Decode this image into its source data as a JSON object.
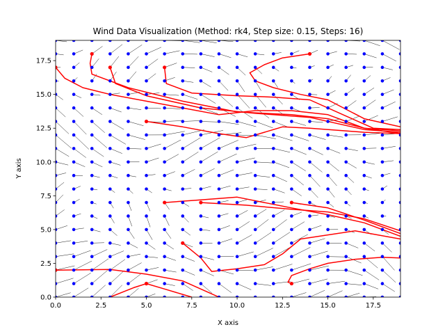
{
  "chart_data": {
    "type": "quiver+streamlines",
    "title": "Wind Data Visualization (Method: rk4, Step size: 0.15, Steps: 16)",
    "xlabel": "X axis",
    "ylabel": "Y axis",
    "xlim": [
      0,
      19
    ],
    "ylim": [
      0,
      19
    ],
    "xticks": [
      "0.0",
      "2.5",
      "5.0",
      "7.5",
      "10.0",
      "12.5",
      "15.0",
      "17.5"
    ],
    "xtick_values": [
      0,
      2.5,
      5,
      7.5,
      10,
      12.5,
      15,
      17.5
    ],
    "yticks": [
      "0.0",
      "2.5",
      "5.0",
      "7.5",
      "10.0",
      "12.5",
      "15.0",
      "17.5"
    ],
    "ytick_values": [
      0,
      2.5,
      5,
      7.5,
      10,
      12.5,
      15,
      17.5
    ],
    "grid": false,
    "colors": {
      "grid_points": "#0000ff",
      "streamlines": "#ff0000",
      "arrows": "#000000"
    },
    "grid_points": {
      "x_range": [
        0,
        19
      ],
      "y_range": [
        0,
        19
      ],
      "step": 1
    },
    "streamlines": [
      {
        "start": [
          2,
          18
        ],
        "points": [
          [
            2,
            18
          ],
          [
            1.9,
            17.3
          ],
          [
            2,
            16.5
          ],
          [
            4,
            15.5
          ],
          [
            7,
            14.5
          ],
          [
            10,
            13.7
          ],
          [
            13,
            13.5
          ],
          [
            15,
            13.2
          ],
          [
            17,
            12.5
          ],
          [
            19,
            12.3
          ]
        ]
      },
      {
        "start": [
          3,
          17
        ],
        "points": [
          [
            3,
            17
          ],
          [
            3.3,
            15.8
          ],
          [
            5,
            14.9
          ],
          [
            8,
            14
          ],
          [
            11,
            13.6
          ],
          [
            14,
            13.3
          ],
          [
            17,
            12.4
          ],
          [
            19,
            12.2
          ]
        ]
      },
      {
        "start": [
          6,
          17
        ],
        "points": [
          [
            6,
            17
          ],
          [
            6.1,
            15.8
          ],
          [
            7.5,
            15.1
          ],
          [
            10,
            14.9
          ],
          [
            12,
            14.8
          ],
          [
            14,
            14.6
          ],
          [
            16,
            13.4
          ],
          [
            17.5,
            12.5
          ],
          [
            19,
            12.4
          ]
        ]
      },
      {
        "start": [
          14,
          18
        ],
        "points": [
          [
            14,
            18
          ],
          [
            12.5,
            17.7
          ],
          [
            11.5,
            17.2
          ],
          [
            10.7,
            16.6
          ],
          [
            11,
            16
          ],
          [
            12,
            15.5
          ],
          [
            13.5,
            15
          ],
          [
            15,
            14.6
          ],
          [
            17,
            13.2
          ],
          [
            19,
            12.6
          ]
        ]
      },
      {
        "start": [
          0,
          17
        ],
        "points": [
          [
            0,
            17
          ],
          [
            0.5,
            16.2
          ],
          [
            1.5,
            15.5
          ],
          [
            3,
            15
          ],
          [
            5,
            14.5
          ],
          [
            7,
            14
          ],
          [
            9,
            13.5
          ],
          [
            11,
            13.8
          ],
          [
            13,
            13.8
          ],
          [
            15,
            13.5
          ],
          [
            17,
            12.5
          ],
          [
            19,
            12.1
          ]
        ]
      },
      {
        "start": [
          5,
          13
        ],
        "points": [
          [
            5,
            13
          ],
          [
            7,
            12.6
          ],
          [
            9,
            12.1
          ],
          [
            10.5,
            11.8
          ],
          [
            11.5,
            12.2
          ],
          [
            12.5,
            12.6
          ],
          [
            14,
            12.5
          ],
          [
            16,
            12.3
          ],
          [
            17,
            12.2
          ],
          [
            19,
            12.1
          ]
        ]
      },
      {
        "start": [
          6,
          7
        ],
        "points": [
          [
            6,
            7
          ],
          [
            8,
            7.2
          ],
          [
            10,
            7.4
          ],
          [
            11.5,
            7
          ],
          [
            13,
            6.6
          ],
          [
            15,
            6.1
          ],
          [
            17,
            5.5
          ],
          [
            19,
            4.5
          ]
        ]
      },
      {
        "start": [
          8,
          7
        ],
        "points": [
          [
            8,
            7
          ],
          [
            10.5,
            6.8
          ],
          [
            13,
            6.5
          ],
          [
            15,
            6.3
          ],
          [
            17,
            5.8
          ],
          [
            19,
            4.9
          ]
        ]
      },
      {
        "start": [
          13,
          7
        ],
        "points": [
          [
            13,
            7
          ],
          [
            15,
            6.6
          ],
          [
            17,
            5.7
          ],
          [
            19,
            4.7
          ]
        ]
      },
      {
        "start": [
          7,
          4
        ],
        "points": [
          [
            7,
            4
          ],
          [
            8,
            2.9
          ],
          [
            8.6,
            1.9
          ],
          [
            10,
            2.1
          ],
          [
            11.5,
            2.4
          ],
          [
            12.5,
            3.2
          ],
          [
            13.5,
            4.3
          ],
          [
            16.5,
            4.9
          ],
          [
            19,
            4.3
          ]
        ]
      },
      {
        "start": [
          13,
          1
        ],
        "points": [
          [
            13,
            1
          ],
          [
            12.8,
            1.1
          ],
          [
            13,
            1.6
          ],
          [
            14,
            2.1
          ],
          [
            15,
            2.5
          ],
          [
            16.5,
            2.8
          ],
          [
            18,
            2.95
          ],
          [
            19,
            2.9
          ]
        ]
      },
      {
        "start": [
          0,
          2
        ],
        "points": [
          [
            0,
            2
          ],
          [
            1.5,
            2.02
          ],
          [
            3,
            2.05
          ],
          [
            5,
            1.7
          ],
          [
            7,
            1.2
          ],
          [
            8.5,
            0.3
          ],
          [
            9,
            0
          ]
        ]
      },
      {
        "start": [
          5,
          1
        ],
        "points": [
          [
            5,
            1
          ],
          [
            4.3,
            0.7
          ],
          [
            3,
            0
          ]
        ]
      },
      {
        "start": [
          5,
          1
        ],
        "points": [
          [
            5,
            1
          ],
          [
            6,
            0.6
          ],
          [
            7,
            0.2
          ],
          [
            7.5,
            0
          ]
        ]
      }
    ]
  }
}
